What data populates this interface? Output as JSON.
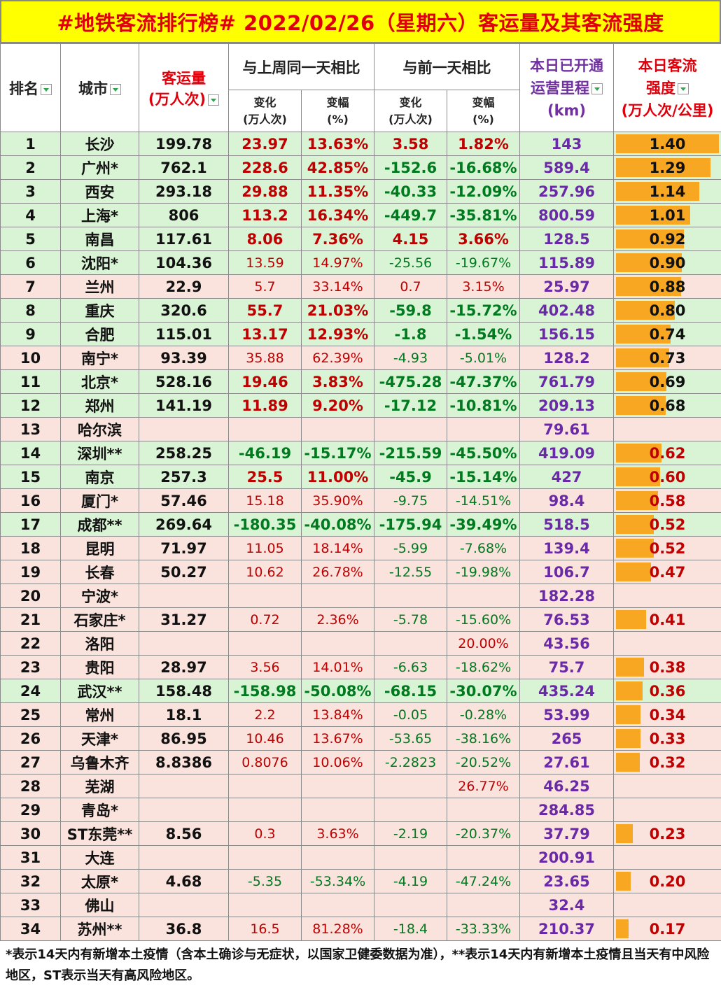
{
  "title": "#地铁客流排行榜# 2022/02/26（星期六）客运量及其客流强度",
  "headers": {
    "rank": "排名",
    "city": "城市",
    "volume_l1": "客运量",
    "volume_l2": "(万人次)",
    "week_group": "与上周同一天相比",
    "day_group": "与前一天相比",
    "change_l1": "变化",
    "change_l2": "(万人次)",
    "pct_l1": "变幅",
    "pct_l2": "(%)",
    "mileage_l1": "本日已开通",
    "mileage_l2": "运营里程",
    "mileage_l3": "(km)",
    "intensity_l1": "本日客流",
    "intensity_l2": "强度",
    "intensity_l3": "(万人次/公里)"
  },
  "rows": [
    {
      "rank": "1",
      "city": "长沙",
      "volume": "199.78",
      "wchg": "23.97",
      "wpct": "13.63%",
      "dchg": "3.58",
      "dpct": "1.82%",
      "mileage": "143",
      "intensity": "1.40",
      "bar": 1.0,
      "bg": "g",
      "wcol": "red",
      "dcol": "red",
      "wthin": false,
      "dthin": false
    },
    {
      "rank": "2",
      "city": "广州*",
      "volume": "762.1",
      "wchg": "228.6",
      "wpct": "42.85%",
      "dchg": "-152.6",
      "dpct": "-16.68%",
      "mileage": "589.4",
      "intensity": "1.29",
      "bar": 0.92,
      "bg": "g",
      "wcol": "red",
      "dcol": "grn",
      "wthin": false,
      "dthin": false
    },
    {
      "rank": "3",
      "city": "西安",
      "volume": "293.18",
      "wchg": "29.88",
      "wpct": "11.35%",
      "dchg": "-40.33",
      "dpct": "-12.09%",
      "mileage": "257.96",
      "intensity": "1.14",
      "bar": 0.81,
      "bg": "g",
      "wcol": "red",
      "dcol": "grn",
      "wthin": false,
      "dthin": false
    },
    {
      "rank": "4",
      "city": "上海*",
      "volume": "806",
      "wchg": "113.2",
      "wpct": "16.34%",
      "dchg": "-449.7",
      "dpct": "-35.81%",
      "mileage": "800.59",
      "intensity": "1.01",
      "bar": 0.72,
      "bg": "g",
      "wcol": "red",
      "dcol": "grn",
      "wthin": false,
      "dthin": false
    },
    {
      "rank": "5",
      "city": "南昌",
      "volume": "117.61",
      "wchg": "8.06",
      "wpct": "7.36%",
      "dchg": "4.15",
      "dpct": "3.66%",
      "mileage": "128.5",
      "intensity": "0.92",
      "bar": 0.66,
      "bg": "g",
      "wcol": "red",
      "dcol": "red",
      "wthin": false,
      "dthin": false
    },
    {
      "rank": "6",
      "city": "沈阳*",
      "volume": "104.36",
      "wchg": "13.59",
      "wpct": "14.97%",
      "dchg": "-25.56",
      "dpct": "-19.67%",
      "mileage": "115.89",
      "intensity": "0.90",
      "bar": 0.64,
      "bg": "g",
      "wcol": "red",
      "dcol": "grn",
      "wthin": true,
      "dthin": true
    },
    {
      "rank": "7",
      "city": "兰州",
      "volume": "22.9",
      "wchg": "5.7",
      "wpct": "33.14%",
      "dchg": "0.7",
      "dpct": "3.15%",
      "mileage": "25.97",
      "intensity": "0.88",
      "bar": 0.63,
      "bg": "p",
      "wcol": "red",
      "dcol": "red",
      "wthin": true,
      "dthin": true
    },
    {
      "rank": "8",
      "city": "重庆",
      "volume": "320.6",
      "wchg": "55.7",
      "wpct": "21.03%",
      "dchg": "-59.8",
      "dpct": "-15.72%",
      "mileage": "402.48",
      "intensity": "0.80",
      "bar": 0.57,
      "bg": "g",
      "wcol": "red",
      "dcol": "grn",
      "wthin": false,
      "dthin": false
    },
    {
      "rank": "9",
      "city": "合肥",
      "volume": "115.01",
      "wchg": "13.17",
      "wpct": "12.93%",
      "dchg": "-1.8",
      "dpct": "-1.54%",
      "mileage": "156.15",
      "intensity": "0.74",
      "bar": 0.53,
      "bg": "g",
      "wcol": "red",
      "dcol": "grn",
      "wthin": false,
      "dthin": false
    },
    {
      "rank": "10",
      "city": "南宁*",
      "volume": "93.39",
      "wchg": "35.88",
      "wpct": "62.39%",
      "dchg": "-4.93",
      "dpct": "-5.01%",
      "mileage": "128.2",
      "intensity": "0.73",
      "bar": 0.52,
      "bg": "p",
      "wcol": "red",
      "dcol": "grn",
      "wthin": true,
      "dthin": true
    },
    {
      "rank": "11",
      "city": "北京*",
      "volume": "528.16",
      "wchg": "19.46",
      "wpct": "3.83%",
      "dchg": "-475.28",
      "dpct": "-47.37%",
      "mileage": "761.79",
      "intensity": "0.69",
      "bar": 0.49,
      "bg": "g",
      "wcol": "red",
      "dcol": "grn",
      "wthin": false,
      "dthin": false
    },
    {
      "rank": "12",
      "city": "郑州",
      "volume": "141.19",
      "wchg": "11.89",
      "wpct": "9.20%",
      "dchg": "-17.12",
      "dpct": "-10.81%",
      "mileage": "209.13",
      "intensity": "0.68",
      "bar": 0.48,
      "bg": "g",
      "wcol": "red",
      "dcol": "grn",
      "wthin": false,
      "dthin": false
    },
    {
      "rank": "13",
      "city": "哈尔滨",
      "volume": "",
      "wchg": "",
      "wpct": "",
      "dchg": "",
      "dpct": "",
      "mileage": "79.61",
      "intensity": "",
      "bar": 0,
      "bg": "p",
      "wcol": "red",
      "dcol": "red",
      "wthin": false,
      "dthin": false
    },
    {
      "rank": "14",
      "city": "深圳**",
      "volume": "258.25",
      "wchg": "-46.19",
      "wpct": "-15.17%",
      "dchg": "-215.59",
      "dpct": "-45.50%",
      "mileage": "419.09",
      "intensity": "0.62",
      "bar": 0.44,
      "bg": "g",
      "wcol": "grn",
      "dcol": "grn",
      "wthin": false,
      "dthin": false
    },
    {
      "rank": "15",
      "city": "南京",
      "volume": "257.3",
      "wchg": "25.5",
      "wpct": "11.00%",
      "dchg": "-45.9",
      "dpct": "-15.14%",
      "mileage": "427",
      "intensity": "0.60",
      "bar": 0.43,
      "bg": "g",
      "wcol": "red",
      "dcol": "grn",
      "wthin": false,
      "dthin": false
    },
    {
      "rank": "16",
      "city": "厦门*",
      "volume": "57.46",
      "wchg": "15.18",
      "wpct": "35.90%",
      "dchg": "-9.75",
      "dpct": "-14.51%",
      "mileage": "98.4",
      "intensity": "0.58",
      "bar": 0.41,
      "bg": "p",
      "wcol": "red",
      "dcol": "grn",
      "wthin": true,
      "dthin": true
    },
    {
      "rank": "17",
      "city": "成都**",
      "volume": "269.64",
      "wchg": "-180.35",
      "wpct": "-40.08%",
      "dchg": "-175.94",
      "dpct": "-39.49%",
      "mileage": "518.5",
      "intensity": "0.52",
      "bar": 0.37,
      "bg": "g",
      "wcol": "grn",
      "dcol": "grn",
      "wthin": false,
      "dthin": false
    },
    {
      "rank": "18",
      "city": "昆明",
      "volume": "71.97",
      "wchg": "11.05",
      "wpct": "18.14%",
      "dchg": "-5.99",
      "dpct": "-7.68%",
      "mileage": "139.4",
      "intensity": "0.52",
      "bar": 0.37,
      "bg": "p",
      "wcol": "red",
      "dcol": "grn",
      "wthin": true,
      "dthin": true
    },
    {
      "rank": "19",
      "city": "长春",
      "volume": "50.27",
      "wchg": "10.62",
      "wpct": "26.78%",
      "dchg": "-12.55",
      "dpct": "-19.98%",
      "mileage": "106.7",
      "intensity": "0.47",
      "bar": 0.34,
      "bg": "p",
      "wcol": "red",
      "dcol": "grn",
      "wthin": true,
      "dthin": true
    },
    {
      "rank": "20",
      "city": "宁波*",
      "volume": "",
      "wchg": "",
      "wpct": "",
      "dchg": "",
      "dpct": "",
      "mileage": "182.28",
      "intensity": "",
      "bar": 0,
      "bg": "p",
      "wcol": "red",
      "dcol": "red",
      "wthin": false,
      "dthin": false
    },
    {
      "rank": "21",
      "city": "石家庄*",
      "volume": "31.27",
      "wchg": "0.72",
      "wpct": "2.36%",
      "dchg": "-5.78",
      "dpct": "-15.60%",
      "mileage": "76.53",
      "intensity": "0.41",
      "bar": 0.29,
      "bg": "p",
      "wcol": "red",
      "dcol": "grn",
      "wthin": true,
      "dthin": true
    },
    {
      "rank": "22",
      "city": "洛阳",
      "volume": "",
      "wchg": "",
      "wpct": "",
      "dchg": "",
      "dpct": "20.00%",
      "mileage": "43.56",
      "intensity": "",
      "bar": 0,
      "bg": "p",
      "wcol": "red",
      "dcol": "red",
      "wthin": true,
      "dthin": true
    },
    {
      "rank": "23",
      "city": "贵阳",
      "volume": "28.97",
      "wchg": "3.56",
      "wpct": "14.01%",
      "dchg": "-6.63",
      "dpct": "-18.62%",
      "mileage": "75.7",
      "intensity": "0.38",
      "bar": 0.27,
      "bg": "p",
      "wcol": "red",
      "dcol": "grn",
      "wthin": true,
      "dthin": true
    },
    {
      "rank": "24",
      "city": "武汉**",
      "volume": "158.48",
      "wchg": "-158.98",
      "wpct": "-50.08%",
      "dchg": "-68.15",
      "dpct": "-30.07%",
      "mileage": "435.24",
      "intensity": "0.36",
      "bar": 0.26,
      "bg": "g",
      "wcol": "grn",
      "dcol": "grn",
      "wthin": false,
      "dthin": false
    },
    {
      "rank": "25",
      "city": "常州",
      "volume": "18.1",
      "wchg": "2.2",
      "wpct": "13.84%",
      "dchg": "-0.05",
      "dpct": "-0.28%",
      "mileage": "53.99",
      "intensity": "0.34",
      "bar": 0.24,
      "bg": "p",
      "wcol": "red",
      "dcol": "grn",
      "wthin": true,
      "dthin": true
    },
    {
      "rank": "26",
      "city": "天津*",
      "volume": "86.95",
      "wchg": "10.46",
      "wpct": "13.67%",
      "dchg": "-53.65",
      "dpct": "-38.16%",
      "mileage": "265",
      "intensity": "0.33",
      "bar": 0.24,
      "bg": "p",
      "wcol": "red",
      "dcol": "grn",
      "wthin": true,
      "dthin": true
    },
    {
      "rank": "27",
      "city": "乌鲁木齐",
      "volume": "8.8386",
      "wchg": "0.8076",
      "wpct": "10.06%",
      "dchg": "-2.2823",
      "dpct": "-20.52%",
      "mileage": "27.61",
      "intensity": "0.32",
      "bar": 0.23,
      "bg": "p",
      "wcol": "red",
      "dcol": "grn",
      "wthin": true,
      "dthin": true
    },
    {
      "rank": "28",
      "city": "芜湖",
      "volume": "",
      "wchg": "",
      "wpct": "",
      "dchg": "",
      "dpct": "26.77%",
      "mileage": "46.25",
      "intensity": "",
      "bar": 0,
      "bg": "p",
      "wcol": "red",
      "dcol": "red",
      "wthin": true,
      "dthin": true
    },
    {
      "rank": "29",
      "city": "青岛*",
      "volume": "",
      "wchg": "",
      "wpct": "",
      "dchg": "",
      "dpct": "",
      "mileage": "284.85",
      "intensity": "",
      "bar": 0,
      "bg": "p",
      "wcol": "red",
      "dcol": "red",
      "wthin": false,
      "dthin": false
    },
    {
      "rank": "30",
      "city": "ST东莞**",
      "volume": "8.56",
      "wchg": "0.3",
      "wpct": "3.63%",
      "dchg": "-2.19",
      "dpct": "-20.37%",
      "mileage": "37.79",
      "intensity": "0.23",
      "bar": 0.16,
      "bg": "p",
      "wcol": "red",
      "dcol": "grn",
      "wthin": true,
      "dthin": true
    },
    {
      "rank": "31",
      "city": "大连",
      "volume": "",
      "wchg": "",
      "wpct": "",
      "dchg": "",
      "dpct": "",
      "mileage": "200.91",
      "intensity": "",
      "bar": 0,
      "bg": "p",
      "wcol": "red",
      "dcol": "red",
      "wthin": false,
      "dthin": false
    },
    {
      "rank": "32",
      "city": "太原*",
      "volume": "4.68",
      "wchg": "-5.35",
      "wpct": "-53.34%",
      "dchg": "-4.19",
      "dpct": "-47.24%",
      "mileage": "23.65",
      "intensity": "0.20",
      "bar": 0.14,
      "bg": "p",
      "wcol": "grn",
      "dcol": "grn",
      "wthin": true,
      "dthin": true
    },
    {
      "rank": "33",
      "city": "佛山",
      "volume": "",
      "wchg": "",
      "wpct": "",
      "dchg": "",
      "dpct": "",
      "mileage": "32.4",
      "intensity": "",
      "bar": 0,
      "bg": "p",
      "wcol": "red",
      "dcol": "red",
      "wthin": false,
      "dthin": false
    },
    {
      "rank": "34",
      "city": "苏州**",
      "volume": "36.8",
      "wchg": "16.5",
      "wpct": "81.28%",
      "dchg": "-18.4",
      "dpct": "-33.33%",
      "mileage": "210.37",
      "intensity": "0.17",
      "bar": 0.12,
      "bg": "p",
      "wcol": "red",
      "dcol": "grn",
      "wthin": true,
      "dthin": true
    }
  ],
  "footnote": "*表示14天内有新增本土疫情（含本土确诊与无症状，以国家卫健委数据为准），**表示14天内有新增本土疫情且当天有中风险地区，ST表示当天有高风险地区。",
  "colors": {
    "green_row": "#d9f4d5",
    "pink_row": "#fbe3dd",
    "title_bg": "#ffff00",
    "title_text": "#e0000b",
    "bar": "#f7a721",
    "purple": "#6a2aa8"
  }
}
